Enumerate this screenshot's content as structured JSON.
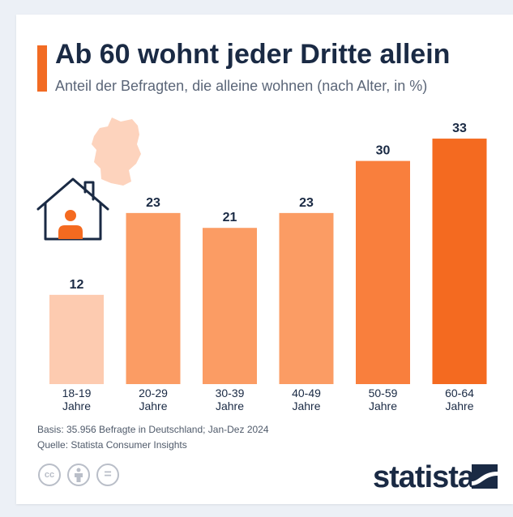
{
  "header": {
    "title": "Ab 60 wohnt jeder Dritte allein",
    "subtitle": "Anteil der Befragten, die alleine wohnen (nach Alter, in %)"
  },
  "chart_data": {
    "type": "bar",
    "categories": [
      [
        "18-19",
        "Jahre"
      ],
      [
        "20-29",
        "Jahre"
      ],
      [
        "30-39",
        "Jahre"
      ],
      [
        "40-49",
        "Jahre"
      ],
      [
        "50-59",
        "Jahre"
      ],
      [
        "60-64",
        "Jahre"
      ]
    ],
    "values": [
      12,
      23,
      21,
      23,
      30,
      33
    ],
    "colors": [
      "#fdcbb0",
      "#fb9c64",
      "#fb9c64",
      "#fb9c64",
      "#f97f3d",
      "#f46a20"
    ],
    "title": "Ab 60 wohnt jeder Dritte allein",
    "ylim": [
      0,
      33
    ],
    "grid": false,
    "legend": "none"
  },
  "footer": {
    "basis": "Basis: 35.956 Befragte in Deutschland; Jan-Dez 2024",
    "source": "Quelle: Statista Consumer Insights"
  },
  "icons": {
    "illustration": [
      "germany-map-icon",
      "house-person-icon"
    ],
    "license": [
      "cc-icon",
      "attribution-icon",
      "no-derivatives-icon"
    ],
    "cc_label": "cc",
    "nd_label": "="
  },
  "brand": {
    "logo_text": "statista",
    "accent_color": "#f26b23",
    "text_color": "#1a2a44"
  }
}
